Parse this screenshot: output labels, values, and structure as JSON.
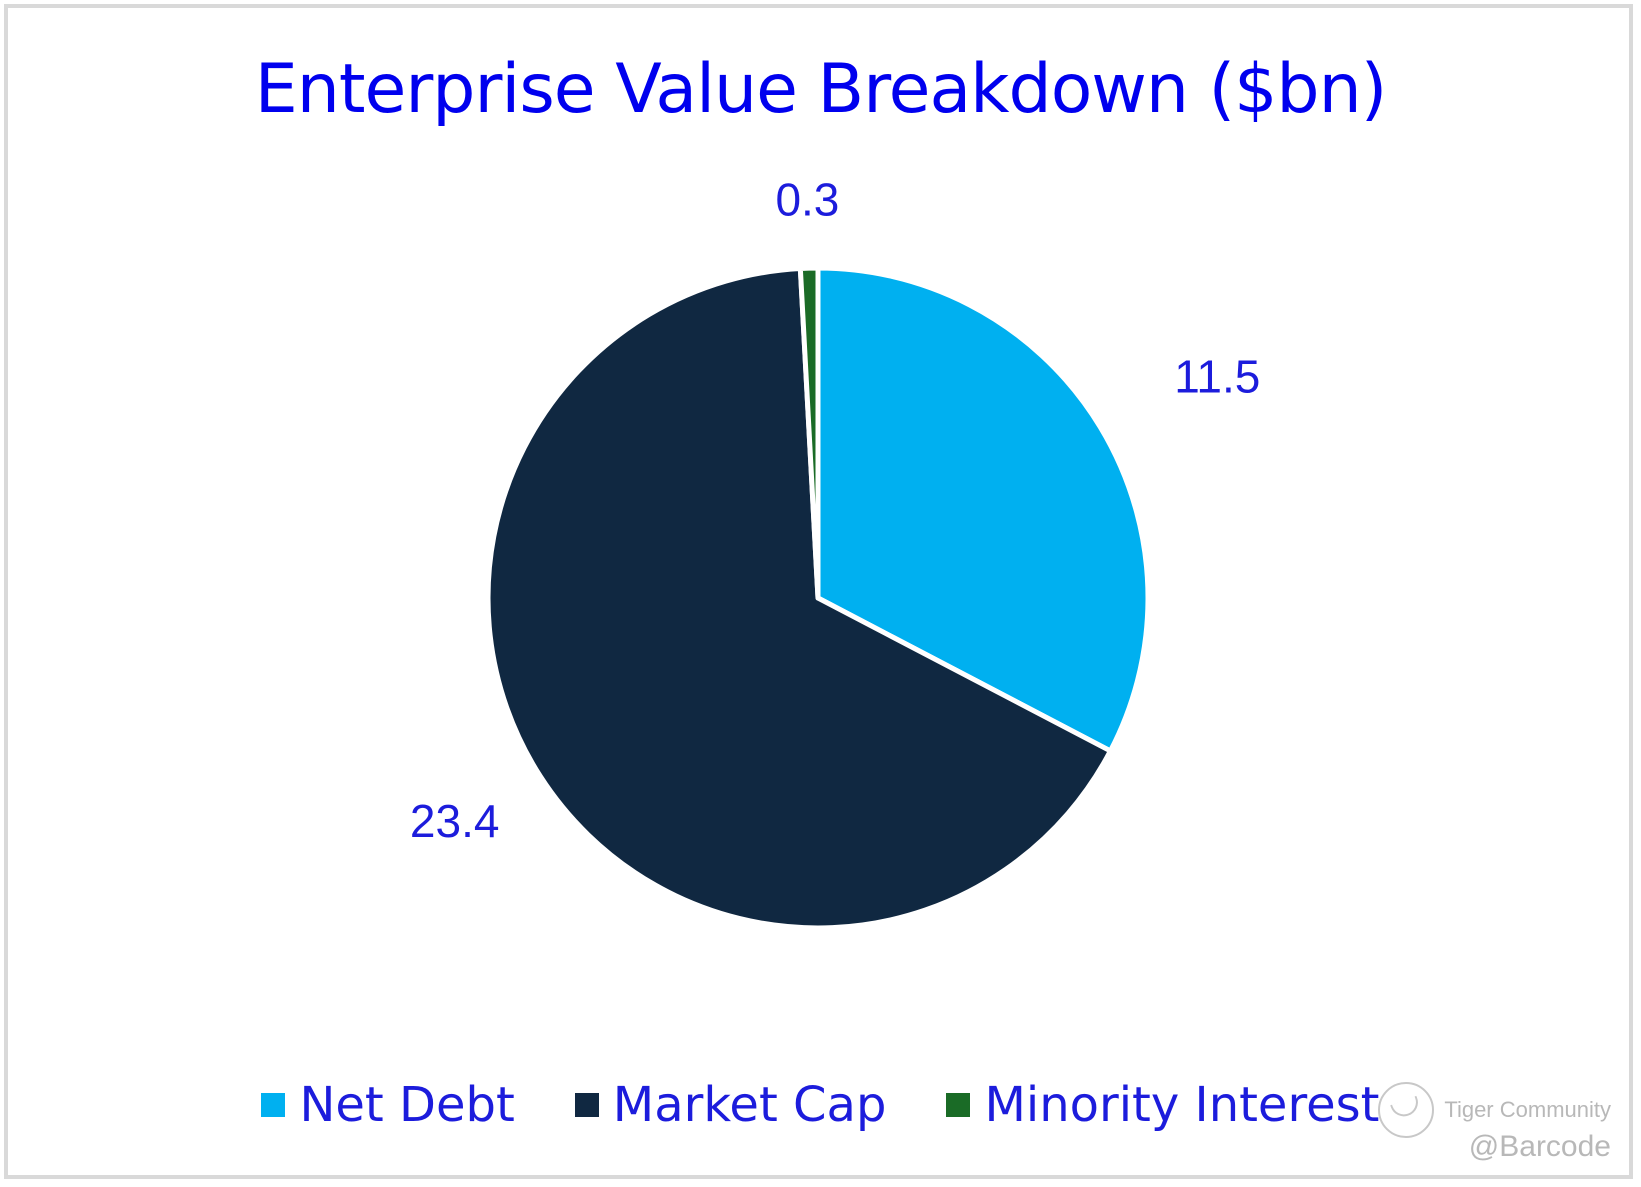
{
  "chart_data": {
    "type": "pie",
    "title": "Enterprise Value Breakdown ($bn)",
    "title_color": "#0000ee",
    "label_color": "#1c1cdc",
    "start_angle_deg": 0,
    "direction": "clockwise",
    "legend_position": "bottom",
    "slices": [
      {
        "label": "Net Debt",
        "value": 11.5,
        "value_label": "11.5",
        "color": "#00b0f0"
      },
      {
        "label": "Market Cap",
        "value": 23.4,
        "value_label": "23.4",
        "color": "#102841"
      },
      {
        "label": "Minority Interest",
        "value": 0.3,
        "value_label": "0.3",
        "color": "#1a6b26"
      }
    ]
  },
  "watermark": {
    "brand": "Tiger Community",
    "handle": "@Barcode",
    "logo_icon": "tiger-logo-icon"
  }
}
